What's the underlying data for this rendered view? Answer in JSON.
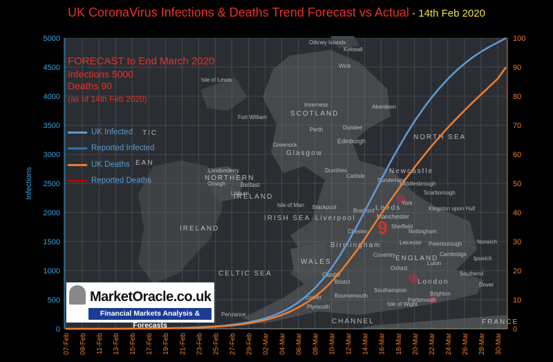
{
  "title": {
    "main": "UK CoronaVirus Infections & Deaths Trend Forecast vs Actual",
    "date": " - 14th Feb 2020"
  },
  "forecast_box": {
    "line1": "FORECAST to End March 2020",
    "line2": "Infections  5000",
    "line3": "Deaths 90",
    "line4": "(as of 14th Feb 2020)"
  },
  "branding": {
    "name": "MarketOracle.co.uk",
    "tagline": "Financial Markets Analysis & Forecasts"
  },
  "map_labels": {
    "orkney": "Orkney Islands",
    "kirkwall": "Kirkwall",
    "wick": "Wick",
    "lewis": "Isle of Lewis",
    "inverness": "Inverness",
    "aberdeen": "Aberdeen",
    "fort_william": "Fort William",
    "scotland": "SCOTLAND",
    "perth": "Perth",
    "dundee": "Dundee",
    "edinburgh": "Edinburgh",
    "greenock": "Greenock",
    "glasgow": "Glasgow",
    "north_sea": "NORTH SEA",
    "atlantic": "TIC",
    "ocean": "EAN",
    "londonderry": "Londonderry",
    "omagh": "Omagh",
    "northern": "NORTHERN",
    "belfast": "Belfast",
    "lisburn": "Lisburn",
    "ireland_ni": "IRELAND",
    "newcastle": "Newcastle",
    "sunderland": "Sunderland",
    "dumfries": "Dumfries",
    "carlisle": "Carlisle",
    "middlesbrough": "Middlesbrough",
    "scarborough": "Scarborough",
    "isle_of_man": "Isle of Man",
    "blackpool": "Blackpool",
    "leeds": "Leeds",
    "york": "York",
    "hull": "Kingston upon Hull",
    "bradford": "Bradford",
    "manchester": "Manchester",
    "sheffield": "Sheffield",
    "liverpool": "Liverpool",
    "irish_sea": "IRISH SEA",
    "ireland": "IRELAND",
    "chester": "Chester",
    "nottingham": "Nottingham",
    "birmingham": "Birmingham",
    "leicester": "Leicester",
    "peterborough": "Peterborough",
    "norwich": "Norwich",
    "wales": "WALES",
    "england": "ENGLAND",
    "coventry": "Coventry",
    "cambridge": "Cambridge",
    "ipswich": "Ipswich",
    "luton": "Luton",
    "celtic_sea": "CELTIC SEA",
    "cardiff": "Cardiff",
    "bristol": "Bristol",
    "oxford": "Oxford",
    "london": "London",
    "southend": "Southend",
    "southampton": "Southampton",
    "exeter": "Exeter",
    "bournemouth": "Bournemouth",
    "dover": "Dover",
    "plymouth": "Plymouth",
    "portsmouth": "Portsmouth",
    "brighton": "Brighton",
    "isle_of_wight": "Isle of Wight",
    "penzance": "Penzance",
    "channel": "CHANNEL",
    "france": "FRANCE",
    "nine": "9"
  },
  "chart_data": {
    "type": "line",
    "title": "UK CoronaVirus Infections & Deaths Trend Forecast vs Actual - 14th Feb 2020",
    "ylabel": "Infections",
    "ylim": [
      0,
      5000
    ],
    "yticks": [
      0,
      500,
      1000,
      1500,
      2000,
      2500,
      3000,
      3500,
      4000,
      4500,
      5000
    ],
    "y2lim": [
      0,
      100
    ],
    "y2ticks": [
      0,
      10,
      20,
      30,
      40,
      50,
      60,
      70,
      80,
      90,
      100
    ],
    "grid": true,
    "legend": "left",
    "x_categories": [
      "07-Feb",
      "08-Feb",
      "09-Feb",
      "10-Feb",
      "11-Feb",
      "12-Feb",
      "13-Feb",
      "14-Feb",
      "15-Feb",
      "16-Feb",
      "17-Feb",
      "18-Feb",
      "19-Feb",
      "20-Feb",
      "21-Feb",
      "22-Feb",
      "23-Feb",
      "24-Feb",
      "25-Feb",
      "26-Feb",
      "27-Feb",
      "28-Feb",
      "29-Feb",
      "01-Mar",
      "02-Mar",
      "03-Mar",
      "04-Mar",
      "05-Mar",
      "06-Mar",
      "07-Mar",
      "08-Mar",
      "09-Mar",
      "10-Mar",
      "11-Mar",
      "12-Mar",
      "13-Mar",
      "14-Mar",
      "15-Mar",
      "16-Mar",
      "17-Mar",
      "18-Mar",
      "19-Mar",
      "20-Mar",
      "21-Mar",
      "22-Mar",
      "23-Mar",
      "24-Mar",
      "25-Mar",
      "26-Mar",
      "27-Mar",
      "28-Mar",
      "29-Mar",
      "30-Mar",
      "31-Mar"
    ],
    "x_tick_labels": [
      "07-Feb",
      "09-Feb",
      "11-Feb",
      "13-Feb",
      "15-Feb",
      "17-Feb",
      "19-Feb",
      "21-Feb",
      "23-Feb",
      "25-Feb",
      "27-Feb",
      "29-Feb",
      "02-Mar",
      "04-Mar",
      "06-Mar",
      "08-Mar",
      "10-Mar",
      "12-Mar",
      "14-Mar",
      "16-Mar",
      "18-Mar",
      "20-Mar",
      "22-Mar",
      "24-Mar",
      "26-Mar",
      "28-Mar",
      "30-Mar"
    ],
    "series": [
      {
        "name": "UK Infected",
        "axis": "left",
        "color": "#5b9bd5",
        "values": [
          0,
          0,
          0,
          0,
          0,
          0,
          0,
          2,
          3,
          4,
          5,
          7,
          9,
          12,
          15,
          20,
          26,
          33,
          42,
          54,
          69,
          88,
          112,
          142,
          180,
          228,
          288,
          362,
          454,
          566,
          700,
          860,
          1046,
          1258,
          1494,
          1750,
          2020,
          2296,
          2572,
          2842,
          3100,
          3344,
          3570,
          3778,
          3968,
          4140,
          4296,
          4436,
          4560,
          4670,
          4766,
          4850,
          4924,
          5000
        ]
      },
      {
        "name": "Reported Infected",
        "axis": "left",
        "color": "#2e75b6",
        "values": []
      },
      {
        "name": "UK Deaths",
        "axis": "right",
        "color": "#ed7d31",
        "values": [
          0,
          0,
          0,
          0,
          0,
          0,
          0,
          0.03,
          0.05,
          0.07,
          0.09,
          0.12,
          0.15,
          0.2,
          0.25,
          0.33,
          0.43,
          0.55,
          0.7,
          0.9,
          1.15,
          1.45,
          1.85,
          2.35,
          3,
          3.8,
          4.75,
          5.9,
          7.3,
          9,
          11,
          13.4,
          16.2,
          19.4,
          23,
          26.8,
          31,
          35.3,
          39.6,
          43.8,
          47.8,
          51.8,
          55.6,
          59.2,
          62.7,
          66,
          69.2,
          72.2,
          75.1,
          77.9,
          80.6,
          83.3,
          86,
          90
        ]
      },
      {
        "name": "Reported Deaths",
        "axis": "right",
        "color": "#c00000",
        "values": []
      }
    ]
  }
}
